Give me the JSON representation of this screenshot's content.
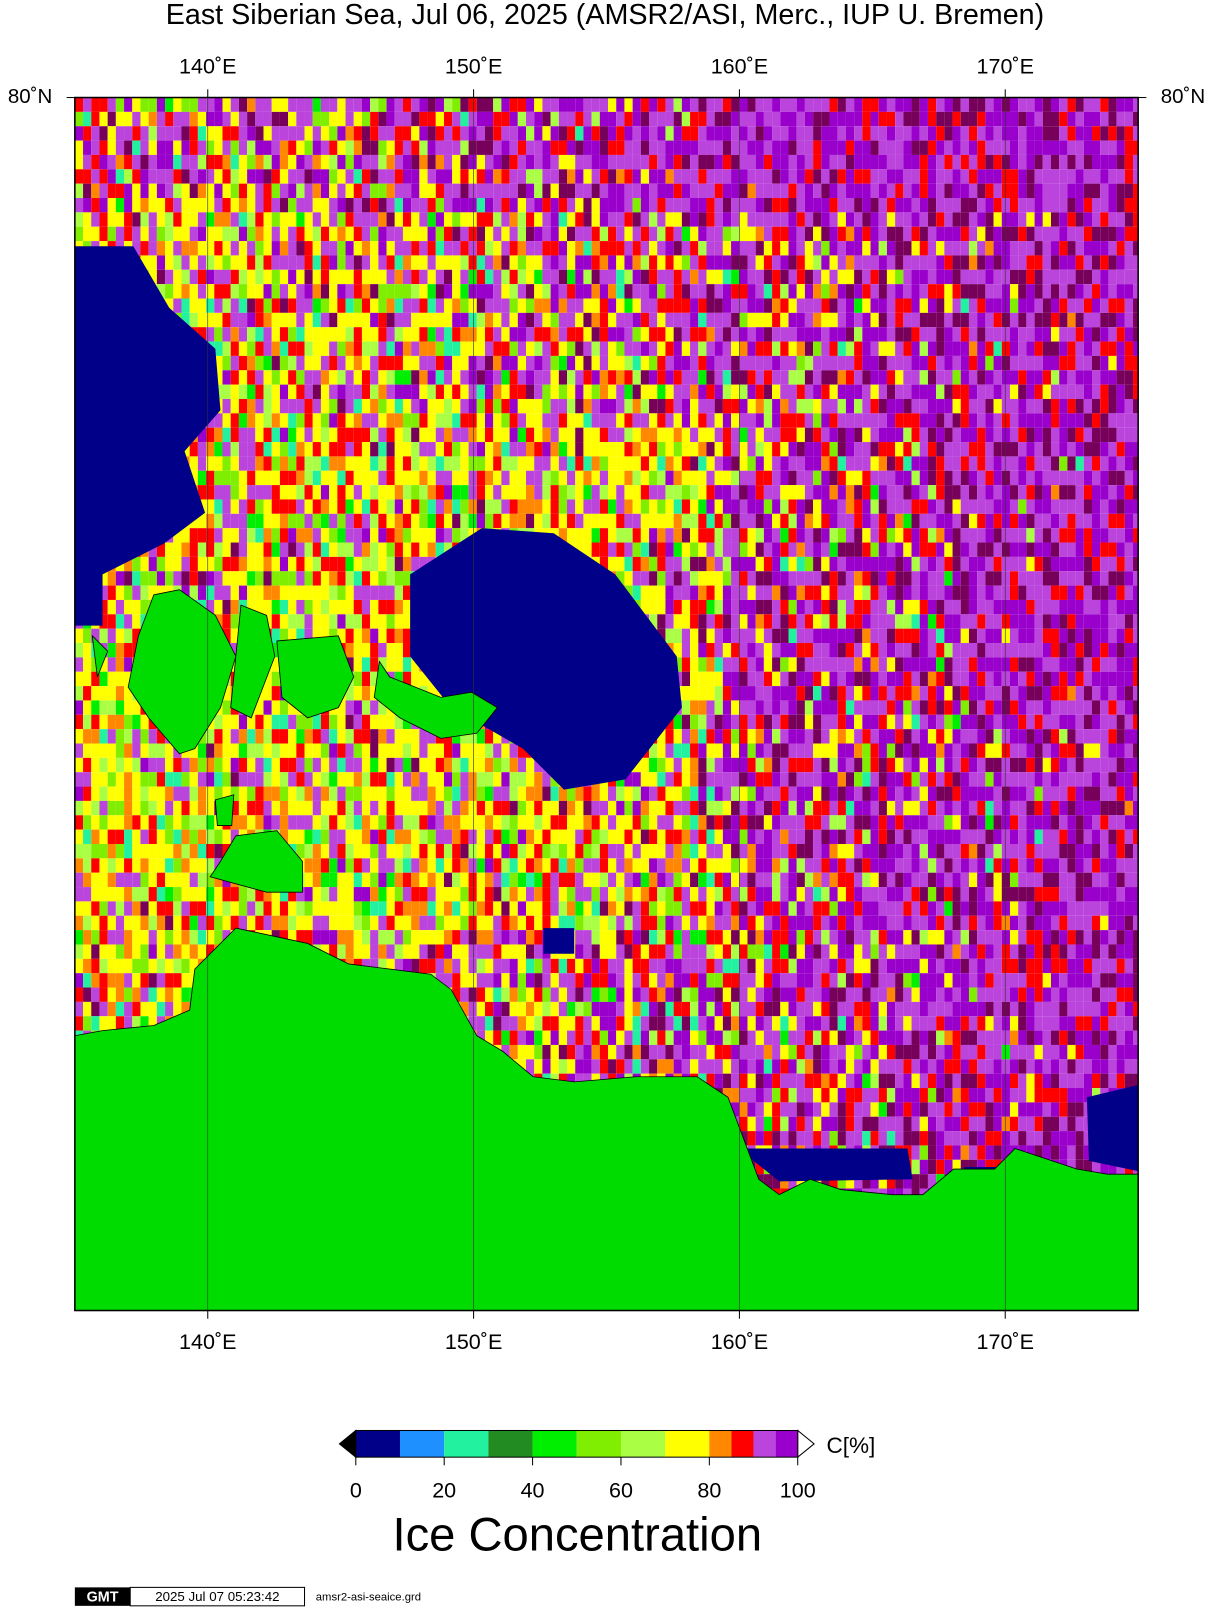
{
  "title": "East Siberian Sea, Jul 06, 2025 (AMSR2/ASI, Merc., IUP U. Bremen)",
  "map": {
    "xlim": [
      135,
      175
    ],
    "ylim": [
      69.6,
      80
    ],
    "xticks": [
      {
        "value": 140,
        "label": "140˚E"
      },
      {
        "value": 150,
        "label": "150˚E"
      },
      {
        "value": 160,
        "label": "160˚E"
      },
      {
        "value": 170,
        "label": "170˚E"
      }
    ],
    "yticks": [
      {
        "value": 80,
        "label": "80˚N"
      }
    ],
    "land_color": "#00dc00",
    "water_color": "#000088"
  },
  "colorbar": {
    "bounds": [
      0,
      10,
      20,
      30,
      40,
      50,
      60,
      70,
      80,
      85,
      90,
      95,
      100
    ],
    "colors": [
      "#000088",
      "#1e90ff",
      "#22f2a0",
      "#228b22",
      "#00ee00",
      "#7fee00",
      "#aaff44",
      "#ffff00",
      "#ff8800",
      "#ff0000",
      "#bb44dd",
      "#9900cc"
    ],
    "ticks": [
      0,
      20,
      40,
      60,
      80,
      100
    ],
    "unit": "C[%]",
    "label": "Ice Concentration"
  },
  "footer": {
    "logo": "GMT",
    "timestamp": "2025 Jul 07 05:23:42",
    "file": "amsr2-asi-seaice.grd"
  }
}
